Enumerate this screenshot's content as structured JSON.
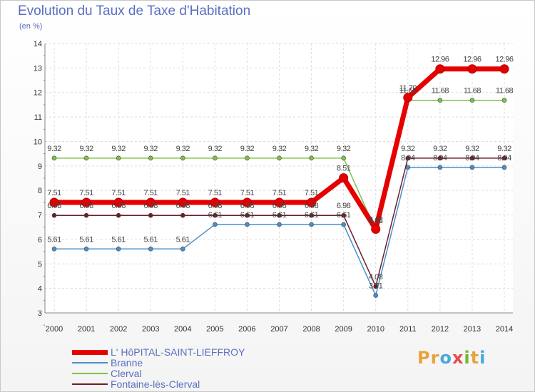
{
  "title": "Evolution du Taux de Taxe d'Habitation",
  "subtitle": "(en %)",
  "logo": {
    "text": "Proxiti",
    "colors": [
      "#e8a33a",
      "#e8a33a",
      "#49a7de",
      "#e84a4a",
      "#6fb83a",
      "#e8a33a",
      "#49a7de"
    ]
  },
  "chart_data": {
    "type": "line",
    "title": "Evolution du Taux de Taxe d'Habitation",
    "subtitle": "(en %)",
    "xlabel": "",
    "ylabel": "(en %)",
    "ylim": [
      3,
      14
    ],
    "yticks": [
      3,
      4,
      5,
      6,
      7,
      8,
      9,
      10,
      11,
      12,
      13,
      14
    ],
    "grid": true,
    "legend": "bottom-left",
    "x": [
      2000,
      2001,
      2002,
      2003,
      2004,
      2005,
      2006,
      2007,
      2008,
      2009,
      2010,
      2011,
      2012,
      2013,
      2014
    ],
    "series": [
      {
        "name": "L' HôPITAL-SAINT-LIEFFROY",
        "color": "#e60000",
        "values": [
          7.51,
          7.51,
          7.51,
          7.51,
          7.51,
          7.51,
          7.51,
          7.51,
          7.51,
          8.51,
          6.42,
          11.79,
          12.96,
          12.96,
          12.96
        ],
        "labels": [
          "7.51",
          "7.51",
          "7.51",
          "7.51",
          "7.51",
          "7.51",
          "7.51",
          "7.51",
          "7.51",
          "8.51",
          "6.42",
          "11.79",
          "12.96",
          "12.96",
          "12.96"
        ]
      },
      {
        "name": "Branne",
        "color": "#4a8fc9",
        "values": [
          5.61,
          5.61,
          5.61,
          5.61,
          5.61,
          6.61,
          6.61,
          6.61,
          6.61,
          6.61,
          3.71,
          8.94,
          8.94,
          8.94,
          8.94
        ],
        "labels": [
          "5.61",
          "5.61",
          "5.61",
          "5.61",
          "5.61",
          "6.61",
          "6.61",
          "6.61",
          "6.61",
          "6.61",
          "3.71",
          "8.94",
          "8.94",
          "8.94",
          "8.94"
        ]
      },
      {
        "name": "Clerval",
        "color": "#7ec24a",
        "values": [
          9.32,
          9.32,
          9.32,
          9.32,
          9.32,
          9.32,
          9.32,
          9.32,
          9.32,
          9.32,
          6.38,
          11.68,
          11.68,
          11.68,
          11.68
        ],
        "labels": [
          "9.32",
          "9.32",
          "9.32",
          "9.32",
          "9.32",
          "9.32",
          "9.32",
          "9.32",
          "9.32",
          "9.32",
          "6.38",
          "11.68",
          "11.68",
          "11.68",
          "11.68"
        ]
      },
      {
        "name": "Fontaine-lès-Clerval",
        "color": "#6b1f2a",
        "values": [
          6.98,
          6.98,
          6.98,
          6.98,
          6.98,
          6.98,
          6.98,
          6.98,
          6.98,
          6.98,
          4.08,
          9.32,
          9.32,
          9.32,
          9.32
        ],
        "labels": [
          "6.98",
          "6.98",
          "6.98",
          "6.98",
          "6.98",
          "6.98",
          "6.98",
          "6.98",
          "6.98",
          "6.98",
          "4.08",
          "9.32",
          "9.32",
          "9.32",
          "9.32"
        ]
      }
    ]
  }
}
